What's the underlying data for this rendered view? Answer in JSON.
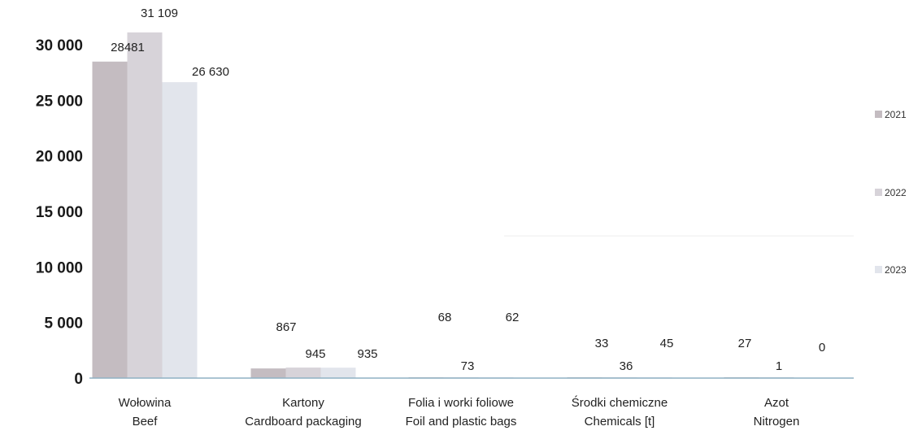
{
  "chart_data": {
    "type": "bar",
    "title": "",
    "xlabel": "",
    "ylabel": "",
    "ylim": [
      0,
      30000
    ],
    "yticks": [
      {
        "value": 0,
        "label": "0"
      },
      {
        "value": 5000,
        "label": "5 000"
      },
      {
        "value": 10000,
        "label": "10 000"
      },
      {
        "value": 15000,
        "label": "15 000"
      },
      {
        "value": 20000,
        "label": "20 000"
      },
      {
        "value": 25000,
        "label": "25 000"
      },
      {
        "value": 30000,
        "label": "30 000"
      }
    ],
    "grid": false,
    "legend": "right",
    "categories": [
      {
        "line1": "Wołowina",
        "line2": "Beef"
      },
      {
        "line1": "Kartony",
        "line2": "Cardboard packaging"
      },
      {
        "line1": "Folia i worki foliowe",
        "line2": "Foil and plastic bags"
      },
      {
        "line1": "Środki chemiczne",
        "line2": "Chemicals [t]"
      },
      {
        "line1": "Azot",
        "line2": "Nitrogen"
      }
    ],
    "series": [
      {
        "name": "2021",
        "color": "#c4bcc1",
        "values": [
          28481,
          867,
          68,
          33,
          27
        ],
        "labels": [
          "28481",
          "867",
          "68",
          "33",
          "27"
        ]
      },
      {
        "name": "2022",
        "color": "#d7d3d9",
        "values": [
          31109,
          945,
          73,
          36,
          1
        ],
        "labels": [
          "31 109",
          "945",
          "73",
          "36",
          "1"
        ]
      },
      {
        "name": "2023",
        "color": "#e2e5ec",
        "values": [
          26630,
          935,
          62,
          45,
          0
        ],
        "labels": [
          "26 630",
          "935",
          "62",
          "45",
          "0"
        ]
      }
    ],
    "axis_color": "#8fb1c4"
  }
}
